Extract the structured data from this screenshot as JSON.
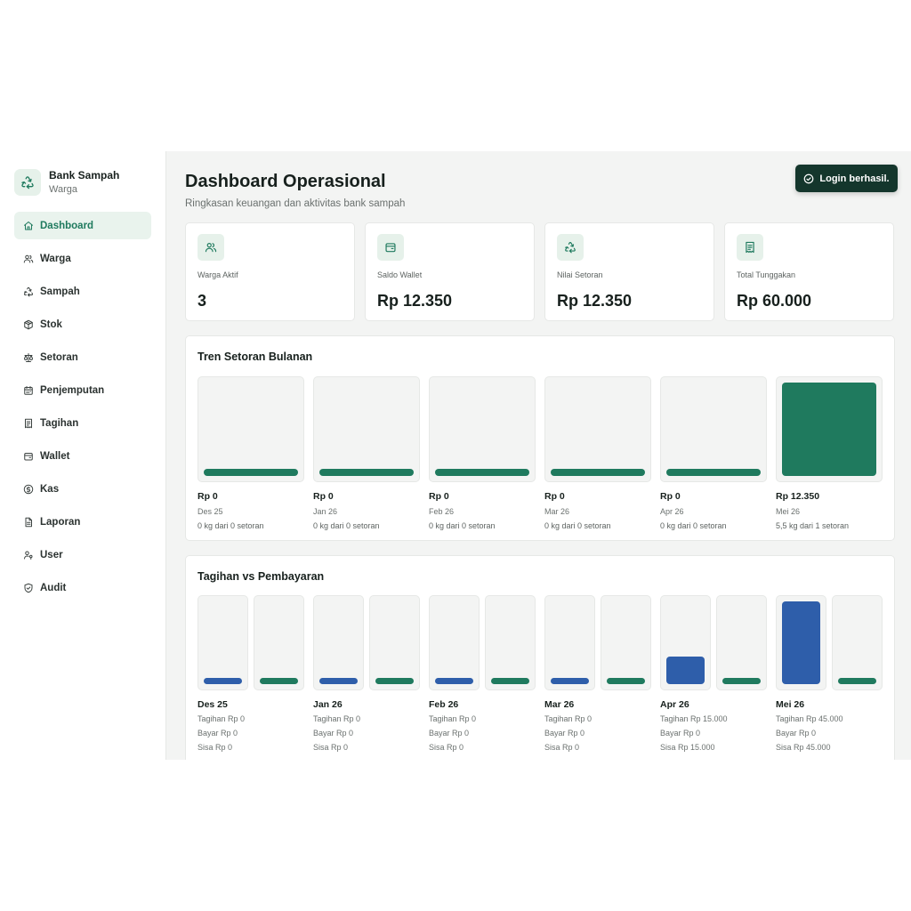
{
  "brand": {
    "name": "Bank Sampah",
    "role": "Warga",
    "logo_icon": "recycle-icon"
  },
  "sidebar": {
    "items": [
      {
        "label": "Dashboard",
        "icon": "home-icon",
        "active": true
      },
      {
        "label": "Warga",
        "icon": "users-icon",
        "active": false
      },
      {
        "label": "Sampah",
        "icon": "recycle-icon",
        "active": false
      },
      {
        "label": "Stok",
        "icon": "package-icon",
        "active": false
      },
      {
        "label": "Setoran",
        "icon": "scale-icon",
        "active": false
      },
      {
        "label": "Penjemputan",
        "icon": "calendar-icon",
        "active": false
      },
      {
        "label": "Tagihan",
        "icon": "receipt-icon",
        "active": false
      },
      {
        "label": "Wallet",
        "icon": "wallet-icon",
        "active": false
      },
      {
        "label": "Kas",
        "icon": "coin-icon",
        "active": false
      },
      {
        "label": "Laporan",
        "icon": "file-icon",
        "active": false
      },
      {
        "label": "User",
        "icon": "user-key-icon",
        "active": false
      },
      {
        "label": "Audit",
        "icon": "shield-check-icon",
        "active": false
      }
    ]
  },
  "header": {
    "title": "Dashboard Operasional",
    "subtitle": "Ringkasan keuangan dan aktivitas bank sampah"
  },
  "toast": {
    "message": "Login berhasil.",
    "icon": "check-circle-icon"
  },
  "stats": [
    {
      "label": "Warga Aktif",
      "value": "3",
      "icon": "users-icon"
    },
    {
      "label": "Saldo Wallet",
      "value": "Rp 12.350",
      "icon": "wallet-icon"
    },
    {
      "label": "Nilai Setoran",
      "value": "Rp 12.350",
      "icon": "recycle-icon"
    },
    {
      "label": "Total Tunggakan",
      "value": "Rp 60.000",
      "icon": "receipt-icon"
    }
  ],
  "trend": {
    "title": "Tren Setoran Bulanan",
    "months": [
      {
        "value_label": "Rp 0",
        "month": "Des 25",
        "detail": "0 kg dari 0 setoran",
        "value": 0
      },
      {
        "value_label": "Rp 0",
        "month": "Jan 26",
        "detail": "0 kg dari 0 setoran",
        "value": 0
      },
      {
        "value_label": "Rp 0",
        "month": "Feb 26",
        "detail": "0 kg dari 0 setoran",
        "value": 0
      },
      {
        "value_label": "Rp 0",
        "month": "Mar 26",
        "detail": "0 kg dari 0 setoran",
        "value": 0
      },
      {
        "value_label": "Rp 0",
        "month": "Apr 26",
        "detail": "0 kg dari 0 setoran",
        "value": 0
      },
      {
        "value_label": "Rp 12.350",
        "month": "Mei 26",
        "detail": "5,5 kg dari 1 setoran",
        "value": 12350
      }
    ]
  },
  "billing": {
    "title": "Tagihan vs Pembayaran",
    "months": [
      {
        "month": "Des 25",
        "tagihan_label": "Tagihan Rp 0",
        "bayar_label": "Bayar Rp 0",
        "sisa_label": "Sisa Rp 0",
        "tagihan": 0,
        "bayar": 0
      },
      {
        "month": "Jan 26",
        "tagihan_label": "Tagihan Rp 0",
        "bayar_label": "Bayar Rp 0",
        "sisa_label": "Sisa Rp 0",
        "tagihan": 0,
        "bayar": 0
      },
      {
        "month": "Feb 26",
        "tagihan_label": "Tagihan Rp 0",
        "bayar_label": "Bayar Rp 0",
        "sisa_label": "Sisa Rp 0",
        "tagihan": 0,
        "bayar": 0
      },
      {
        "month": "Mar 26",
        "tagihan_label": "Tagihan Rp 0",
        "bayar_label": "Bayar Rp 0",
        "sisa_label": "Sisa Rp 0",
        "tagihan": 0,
        "bayar": 0
      },
      {
        "month": "Apr 26",
        "tagihan_label": "Tagihan Rp 15.000",
        "bayar_label": "Bayar Rp 0",
        "sisa_label": "Sisa Rp 15.000",
        "tagihan": 15000,
        "bayar": 0
      },
      {
        "month": "Mei 26",
        "tagihan_label": "Tagihan Rp 45.000",
        "bayar_label": "Bayar Rp 0",
        "sisa_label": "Sisa Rp 45.000",
        "tagihan": 45000,
        "bayar": 0
      }
    ]
  },
  "colors": {
    "accent": "#1f7a5e",
    "tagihan": "#2e5eaa",
    "bayar": "#1f7a5e",
    "toast_bg": "#14362c"
  }
}
